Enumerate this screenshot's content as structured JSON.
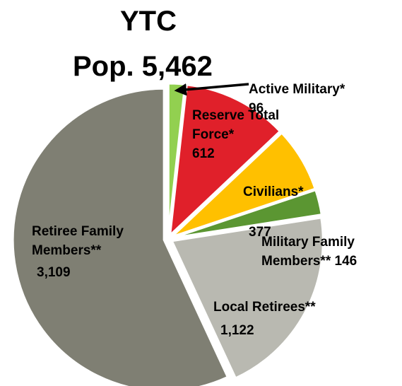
{
  "chart_data": {
    "type": "pie",
    "title": "YTC",
    "subtitle": "Pop. 5,462",
    "categories": [
      "Active Military*",
      "Reserve Total Force*",
      "Civilians*",
      "Military Family Members**",
      "Local Retirees**",
      "Retiree Family Members**"
    ],
    "values": [
      96,
      612,
      377,
      146,
      1122,
      3109
    ],
    "value_labels": [
      "96",
      "612",
      "377",
      "146",
      "1,122",
      "3,109"
    ],
    "colors": [
      "#92d050",
      "#e0202a",
      "#ffc000",
      "#5b9632",
      "#b9b9b1",
      "#7f7f73"
    ]
  }
}
